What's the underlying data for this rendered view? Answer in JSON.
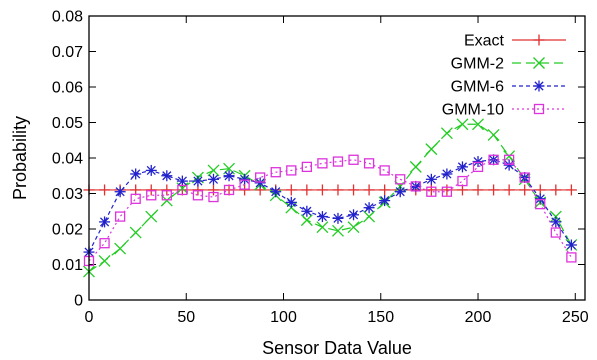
{
  "chart_data": {
    "type": "line",
    "title": "",
    "xlabel": "Sensor Data Value",
    "ylabel": "Probability",
    "xlim": [
      0,
      255
    ],
    "ylim": [
      0,
      0.08
    ],
    "xticks": [
      0,
      50,
      100,
      150,
      200,
      250
    ],
    "yticks": [
      0,
      0.01,
      0.02,
      0.03,
      0.04,
      0.05,
      0.06,
      0.07,
      0.08
    ],
    "xtick_labels": [
      "0",
      "50",
      "100",
      "150",
      "200",
      "250"
    ],
    "ytick_labels": [
      "0",
      "0.01",
      "0.02",
      "0.03",
      "0.04",
      "0.05",
      "0.06",
      "0.07",
      "0.08"
    ],
    "grid": false,
    "legend_position": "top-right",
    "x": [
      0,
      8,
      16,
      24,
      32,
      40,
      48,
      56,
      64,
      72,
      80,
      88,
      96,
      104,
      112,
      120,
      128,
      136,
      144,
      152,
      160,
      168,
      176,
      184,
      192,
      200,
      208,
      216,
      224,
      232,
      240,
      248
    ],
    "series": [
      {
        "name": "Exact",
        "color": "#e03030",
        "marker": "plus",
        "dash": "",
        "values": [
          0.031,
          0.031,
          0.031,
          0.031,
          0.031,
          0.031,
          0.031,
          0.031,
          0.031,
          0.031,
          0.031,
          0.031,
          0.031,
          0.031,
          0.031,
          0.031,
          0.031,
          0.031,
          0.031,
          0.031,
          0.031,
          0.031,
          0.031,
          0.031,
          0.031,
          0.031,
          0.031,
          0.031,
          0.031,
          0.031,
          0.031,
          0.031
        ]
      },
      {
        "name": "GMM-2",
        "color": "#22cc22",
        "marker": "x",
        "dash": "9,5",
        "values": [
          0.008,
          0.011,
          0.0145,
          0.019,
          0.0235,
          0.028,
          0.0315,
          0.0345,
          0.0365,
          0.037,
          0.035,
          0.0325,
          0.0295,
          0.026,
          0.0225,
          0.0205,
          0.0195,
          0.0205,
          0.0235,
          0.0275,
          0.032,
          0.0375,
          0.0425,
          0.047,
          0.0495,
          0.0495,
          0.0465,
          0.0405,
          0.034,
          0.0275,
          0.0235,
          0.0155
        ]
      },
      {
        "name": "GMM-6",
        "color": "#2222cc",
        "marker": "star",
        "dash": "4,3",
        "values": [
          0.0135,
          0.022,
          0.0305,
          0.0355,
          0.0365,
          0.035,
          0.0335,
          0.0335,
          0.034,
          0.035,
          0.034,
          0.033,
          0.0305,
          0.0275,
          0.025,
          0.0235,
          0.023,
          0.024,
          0.026,
          0.028,
          0.0305,
          0.032,
          0.034,
          0.0355,
          0.0375,
          0.039,
          0.0395,
          0.038,
          0.0345,
          0.0285,
          0.022,
          0.0155
        ]
      },
      {
        "name": "GMM-10",
        "color": "#dd33dd",
        "marker": "square",
        "dash": "2,3",
        "values": [
          0.011,
          0.016,
          0.0235,
          0.0285,
          0.0295,
          0.0295,
          0.031,
          0.0295,
          0.029,
          0.031,
          0.0325,
          0.0345,
          0.036,
          0.0365,
          0.0375,
          0.0385,
          0.039,
          0.0395,
          0.0385,
          0.0365,
          0.034,
          0.032,
          0.0305,
          0.0305,
          0.0335,
          0.0375,
          0.0395,
          0.0395,
          0.0345,
          0.027,
          0.019,
          0.012
        ]
      }
    ]
  }
}
